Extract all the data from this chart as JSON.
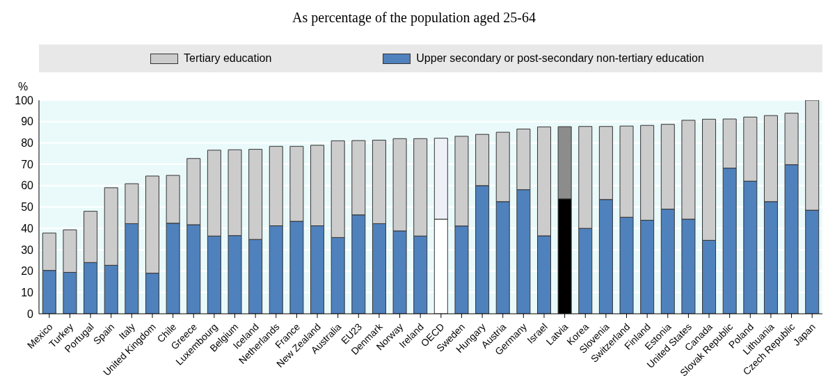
{
  "chart_data": {
    "type": "bar",
    "title": "As percentage of the population aged 25-64",
    "ylabel": "%",
    "categories": [
      "Mexico",
      "Turkey",
      "Portugal",
      "Spain",
      "Italy",
      "United Kingdom",
      "Chile",
      "Greece",
      "Luxembourg",
      "Belgium",
      "Iceland",
      "Netherlands",
      "France",
      "New Zealand",
      "Australia",
      "EU23",
      "Denmark",
      "Norway",
      "Ireland",
      "OECD",
      "Sweden",
      "Hungary",
      "Austria",
      "Germany",
      "Israel",
      "Latvia",
      "Korea",
      "Slovenia",
      "Switzerland",
      "Finland",
      "Estonia",
      "United States",
      "Canada",
      "Slovak Republic",
      "Poland",
      "Lithuania",
      "Czech Republic",
      "Japan"
    ],
    "stacked": true,
    "series": [
      {
        "name": "Upper secondary or post-secondary non-tertiary education",
        "color": "#4f81bd",
        "colors": [
          "#4f81bd",
          "#4f81bd",
          "#4f81bd",
          "#4f81bd",
          "#4f81bd",
          "#4f81bd",
          "#4f81bd",
          "#4f81bd",
          "#4f81bd",
          "#4f81bd",
          "#4f81bd",
          "#4f81bd",
          "#4f81bd",
          "#4f81bd",
          "#4f81bd",
          "#4f81bd",
          "#4f81bd",
          "#4f81bd",
          "#4f81bd",
          "#ffffff",
          "#4f81bd",
          "#4f81bd",
          "#4f81bd",
          "#4f81bd",
          "#4f81bd",
          "#000000",
          "#4f81bd",
          "#4f81bd",
          "#4f81bd",
          "#4f81bd",
          "#4f81bd",
          "#4f81bd",
          "#4f81bd",
          "#4f81bd",
          "#4f81bd",
          "#4f81bd",
          "#4f81bd",
          "#4f81bd"
        ],
        "values": [
          20.3,
          19.4,
          24,
          22.7,
          42.2,
          19,
          42.4,
          41.7,
          36.4,
          36.6,
          34.8,
          41.2,
          43.3,
          41.2,
          35.7,
          46.3,
          42.2,
          38.8,
          36.4,
          44.3,
          41.1,
          60,
          52.5,
          58.1,
          36.5,
          53.8,
          40,
          53.5,
          45.2,
          43.8,
          49,
          44.3,
          34.4,
          68.2,
          62.1,
          52.5,
          69.8,
          48.5
        ]
      },
      {
        "name": "Tertiary education",
        "color": "#cccccc",
        "colors": [
          "#cccccc",
          "#cccccc",
          "#cccccc",
          "#cccccc",
          "#cccccc",
          "#cccccc",
          "#cccccc",
          "#cccccc",
          "#cccccc",
          "#cccccc",
          "#cccccc",
          "#cccccc",
          "#cccccc",
          "#cccccc",
          "#cccccc",
          "#cccccc",
          "#cccccc",
          "#cccccc",
          "#cccccc",
          "#eef0f8",
          "#cccccc",
          "#cccccc",
          "#cccccc",
          "#cccccc",
          "#cccccc",
          "#8c8c8c",
          "#cccccc",
          "#cccccc",
          "#cccccc",
          "#cccccc",
          "#cccccc",
          "#cccccc",
          "#cccccc",
          "#cccccc",
          "#cccccc",
          "#cccccc",
          "#cccccc",
          "#cccccc"
        ],
        "values": [
          17.5,
          19.9,
          24,
          36.3,
          18.7,
          45.5,
          22.4,
          31,
          40.2,
          40.2,
          42.2,
          37.2,
          35.1,
          37.7,
          45.3,
          34.8,
          39.1,
          43.2,
          45.6,
          37.9,
          42,
          24,
          32.5,
          28.4,
          51,
          33.8,
          47.7,
          34.2,
          42.7,
          44.4,
          39.7,
          46.3,
          56.7,
          23,
          30,
          40.3,
          24.1,
          51.5
        ]
      }
    ],
    "ylim": [
      0,
      100
    ],
    "yticks": [
      0,
      10,
      20,
      30,
      40,
      50,
      60,
      70,
      80,
      90,
      100
    ],
    "grid": "y",
    "legend": "top"
  }
}
